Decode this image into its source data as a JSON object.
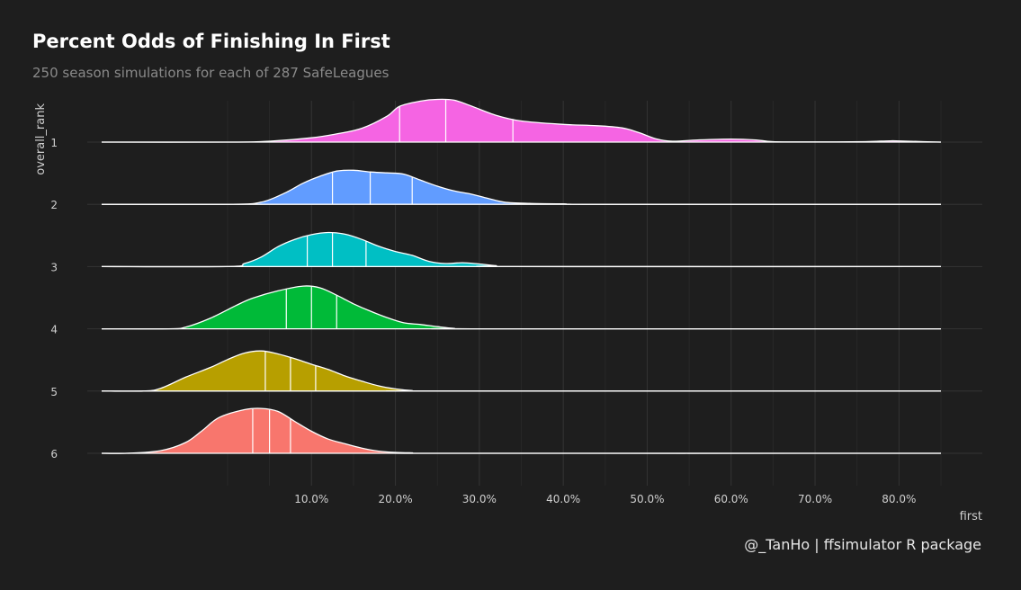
{
  "title": "Percent Odds of Finishing In First",
  "subtitle": "250 season simulations for each of 287 SafeLeagues",
  "caption": "@_TanHo | ffsimulator R package",
  "chart_data": {
    "type": "ridgeline",
    "xlabel": "first",
    "ylabel": "overall_rank",
    "xlim": [
      -0.15,
      0.85
    ],
    "x_ticks": [
      0.1,
      0.2,
      0.3,
      0.4,
      0.5,
      0.6,
      0.7,
      0.8
    ],
    "x_tick_labels": [
      "10.0%",
      "20.0%",
      "30.0%",
      "40.0%",
      "50.0%",
      "60.0%",
      "70.0%",
      "80.0%"
    ],
    "grid": true,
    "legend": "none",
    "series": [
      {
        "name": "1",
        "color": "#F564E3",
        "quantiles": [
          0.205,
          0.26,
          0.34
        ],
        "density": [
          [
            -0.15,
            0
          ],
          [
            0.0,
            0
          ],
          [
            0.05,
            0.02
          ],
          [
            0.1,
            0.1
          ],
          [
            0.13,
            0.19
          ],
          [
            0.16,
            0.32
          ],
          [
            0.19,
            0.6
          ],
          [
            0.205,
            0.83
          ],
          [
            0.23,
            0.95
          ],
          [
            0.25,
            0.99
          ],
          [
            0.27,
            0.97
          ],
          [
            0.29,
            0.84
          ],
          [
            0.32,
            0.62
          ],
          [
            0.35,
            0.49
          ],
          [
            0.4,
            0.41
          ],
          [
            0.44,
            0.38
          ],
          [
            0.47,
            0.33
          ],
          [
            0.49,
            0.22
          ],
          [
            0.51,
            0.08
          ],
          [
            0.53,
            0.02
          ],
          [
            0.56,
            0.05
          ],
          [
            0.6,
            0.07
          ],
          [
            0.63,
            0.05
          ],
          [
            0.65,
            0.01
          ],
          [
            0.7,
            0.005
          ],
          [
            0.76,
            0.01
          ],
          [
            0.79,
            0.03
          ],
          [
            0.81,
            0.02
          ],
          [
            0.85,
            0
          ]
        ]
      },
      {
        "name": "2",
        "color": "#619CFF",
        "quantiles": [
          0.125,
          0.17,
          0.22
        ],
        "density": [
          [
            -0.15,
            0
          ],
          [
            0.0,
            0
          ],
          [
            0.04,
            0.05
          ],
          [
            0.07,
            0.28
          ],
          [
            0.09,
            0.49
          ],
          [
            0.11,
            0.65
          ],
          [
            0.13,
            0.77
          ],
          [
            0.15,
            0.79
          ],
          [
            0.17,
            0.75
          ],
          [
            0.19,
            0.73
          ],
          [
            0.21,
            0.7
          ],
          [
            0.23,
            0.56
          ],
          [
            0.25,
            0.42
          ],
          [
            0.27,
            0.31
          ],
          [
            0.29,
            0.24
          ],
          [
            0.31,
            0.14
          ],
          [
            0.33,
            0.05
          ],
          [
            0.36,
            0.02
          ],
          [
            0.4,
            0.01
          ],
          [
            0.45,
            0
          ],
          [
            0.85,
            0
          ]
        ]
      },
      {
        "name": "3",
        "color": "#00BFC4",
        "quantiles": [
          0.095,
          0.125,
          0.165
        ],
        "density": [
          [
            -0.15,
            0
          ],
          [
            0.0,
            0
          ],
          [
            0.02,
            0.07
          ],
          [
            0.04,
            0.22
          ],
          [
            0.06,
            0.46
          ],
          [
            0.08,
            0.63
          ],
          [
            0.1,
            0.74
          ],
          [
            0.12,
            0.79
          ],
          [
            0.14,
            0.75
          ],
          [
            0.16,
            0.63
          ],
          [
            0.18,
            0.47
          ],
          [
            0.2,
            0.35
          ],
          [
            0.22,
            0.26
          ],
          [
            0.24,
            0.12
          ],
          [
            0.26,
            0.07
          ],
          [
            0.28,
            0.09
          ],
          [
            0.3,
            0.06
          ],
          [
            0.32,
            0.02
          ],
          [
            0.34,
            0
          ],
          [
            0.85,
            0
          ]
        ]
      },
      {
        "name": "4",
        "color": "#00BA38",
        "quantiles": [
          0.07,
          0.1,
          0.13
        ],
        "density": [
          [
            -0.15,
            0
          ],
          [
            -0.07,
            0
          ],
          [
            -0.05,
            0.04
          ],
          [
            -0.02,
            0.25
          ],
          [
            0.01,
            0.54
          ],
          [
            0.03,
            0.71
          ],
          [
            0.06,
            0.88
          ],
          [
            0.09,
            0.99
          ],
          [
            0.11,
            0.95
          ],
          [
            0.13,
            0.78
          ],
          [
            0.15,
            0.58
          ],
          [
            0.17,
            0.41
          ],
          [
            0.19,
            0.26
          ],
          [
            0.21,
            0.14
          ],
          [
            0.23,
            0.1
          ],
          [
            0.25,
            0.05
          ],
          [
            0.27,
            0.01
          ],
          [
            0.29,
            0
          ],
          [
            0.85,
            0
          ]
        ]
      },
      {
        "name": "5",
        "color": "#B79F00",
        "quantiles": [
          0.045,
          0.075,
          0.105
        ],
        "density": [
          [
            -0.15,
            0
          ],
          [
            -0.1,
            0
          ],
          [
            -0.08,
            0.06
          ],
          [
            -0.05,
            0.32
          ],
          [
            -0.02,
            0.55
          ],
          [
            0.0,
            0.73
          ],
          [
            0.02,
            0.88
          ],
          [
            0.04,
            0.93
          ],
          [
            0.06,
            0.86
          ],
          [
            0.08,
            0.75
          ],
          [
            0.1,
            0.62
          ],
          [
            0.12,
            0.5
          ],
          [
            0.14,
            0.35
          ],
          [
            0.16,
            0.23
          ],
          [
            0.18,
            0.12
          ],
          [
            0.2,
            0.05
          ],
          [
            0.22,
            0.01
          ],
          [
            0.24,
            0
          ],
          [
            0.85,
            0
          ]
        ]
      },
      {
        "name": "6",
        "color": "#F8766D",
        "quantiles": [
          0.03,
          0.05,
          0.075
        ],
        "density": [
          [
            -0.15,
            0
          ],
          [
            -0.12,
            0
          ],
          [
            -0.08,
            0.06
          ],
          [
            -0.05,
            0.25
          ],
          [
            -0.03,
            0.53
          ],
          [
            -0.01,
            0.83
          ],
          [
            0.02,
            1.01
          ],
          [
            0.04,
            1.04
          ],
          [
            0.06,
            0.97
          ],
          [
            0.08,
            0.74
          ],
          [
            0.1,
            0.51
          ],
          [
            0.12,
            0.33
          ],
          [
            0.14,
            0.22
          ],
          [
            0.16,
            0.12
          ],
          [
            0.18,
            0.05
          ],
          [
            0.2,
            0.02
          ],
          [
            0.22,
            0.01
          ],
          [
            0.25,
            0
          ],
          [
            0.85,
            0
          ]
        ]
      }
    ]
  }
}
